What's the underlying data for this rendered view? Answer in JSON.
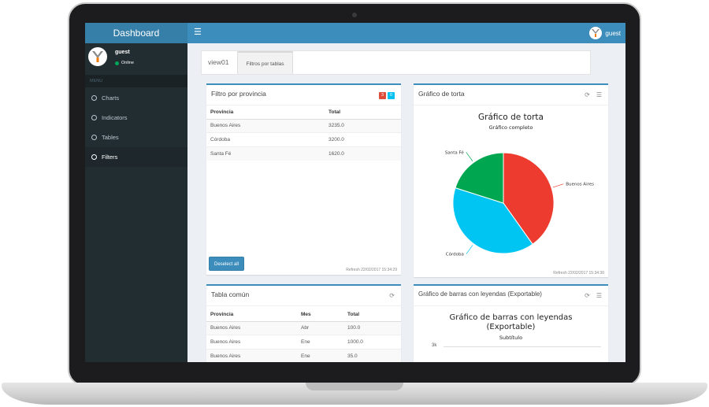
{
  "app": {
    "title": "Dashboard"
  },
  "header": {
    "menu_icon": "hamburger-icon",
    "user_label": "guest"
  },
  "sidebar": {
    "user": {
      "name": "guest",
      "status": "Online"
    },
    "menu_header": "MENU",
    "items": [
      {
        "label": "Charts",
        "active": false
      },
      {
        "label": "Indicators",
        "active": false
      },
      {
        "label": "Tables",
        "active": false
      },
      {
        "label": "Filters",
        "active": true
      }
    ]
  },
  "tabs": [
    {
      "label": "view01",
      "active": false
    },
    {
      "label": "Filtros por tablas",
      "active": true
    }
  ],
  "filtro": {
    "title": "Filtro por provincia",
    "badge_red": "3",
    "badge_blue": "0",
    "columns": [
      "Provincia",
      "Total"
    ],
    "rows": [
      [
        "Buenos Aires",
        "3235.0"
      ],
      [
        "Córdoba",
        "3200.0"
      ],
      [
        "Santa Fé",
        "1620.0"
      ]
    ],
    "deselect_label": "Deselect all",
    "refresh": "Refresh 22/02/2017 15:34:29"
  },
  "torta": {
    "box_title": "Gráfico de torta",
    "refresh": "Refresh 22/02/2017 15:34:30",
    "chart_data": {
      "type": "pie",
      "title": "Gráfico de torta",
      "subtitle": "Gráfico completo",
      "slices": [
        {
          "label": "Buenos Aires",
          "value": 3235.0,
          "color": "#ee3b2f"
        },
        {
          "label": "Córdoba",
          "value": 3200.0,
          "color": "#00c5f3"
        },
        {
          "label": "Santa Fé",
          "value": 1620.0,
          "color": "#00a650"
        }
      ]
    }
  },
  "tabla": {
    "title": "Tabla común",
    "columns": [
      "Provincia",
      "Mes",
      "Total"
    ],
    "rows": [
      [
        "Buenos Aires",
        "Abr",
        "100.0"
      ],
      [
        "Buenos Aires",
        "Ene",
        "1000.0"
      ],
      [
        "Buenos Aires",
        "Ene",
        "35.0"
      ]
    ]
  },
  "barras": {
    "box_title": "Gráfico de barras con leyendas (Exportable)",
    "chart_title_line1": "Gráfico de barras con leyendas",
    "chart_title_line2": "(Exportable)",
    "subtitle": "Subtítulo",
    "y_tick": "3k"
  },
  "colors": {
    "primary": "#3c8dbc",
    "sidebar": "#222d32",
    "logo": "#367fa9"
  }
}
